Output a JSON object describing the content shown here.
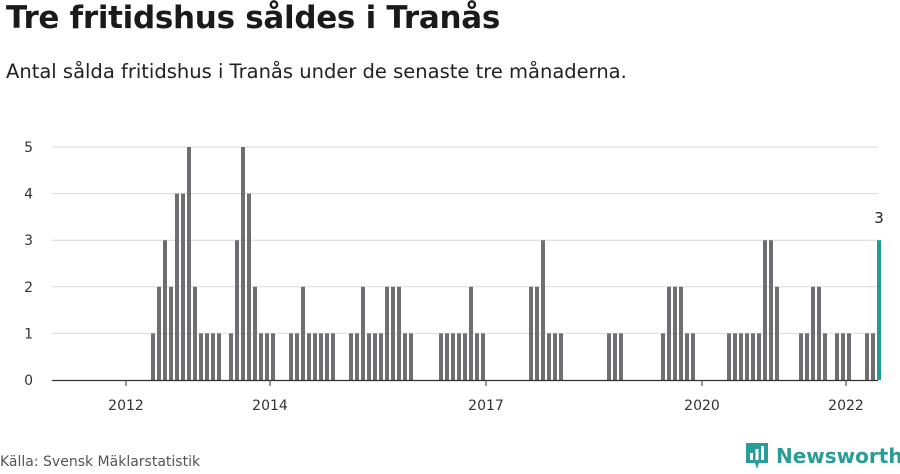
{
  "page": {
    "title": "Tre fritidshus såldes i Tranås",
    "subtitle": "Antal sålda fritidshus i Tranås under de senaste tre månaderna.",
    "source": "Källa: Svensk Mäklarstatistik",
    "brand": "Newsworthy"
  },
  "colors": {
    "bar": "#6e6e73",
    "highlight": "#1a9e96",
    "grid": "#d9d9d9",
    "axis": "#333333",
    "brand": "#2a9d96"
  },
  "chart_data": {
    "type": "bar",
    "title": "Tre fritidshus såldes i Tranås",
    "subtitle": "Antal sålda fritidshus i Tranås under de senaste tre månaderna.",
    "ylim": [
      0,
      5
    ],
    "yticks": [
      0,
      1,
      2,
      3,
      4,
      5
    ],
    "xticks": [
      "2012",
      "2014",
      "2017",
      "2020",
      "2022"
    ],
    "grid": true,
    "bar_count": 130,
    "xtick_positions": [
      4,
      28,
      64,
      100,
      124
    ],
    "values": [
      0,
      0,
      0,
      0,
      0,
      0,
      0,
      0,
      1,
      2,
      3,
      2,
      4,
      4,
      5,
      2,
      1,
      1,
      1,
      1,
      0,
      1,
      3,
      5,
      4,
      2,
      1,
      1,
      1,
      0,
      0,
      1,
      1,
      2,
      1,
      1,
      1,
      1,
      1,
      0,
      0,
      1,
      1,
      2,
      1,
      1,
      1,
      2,
      2,
      2,
      1,
      1,
      0,
      0,
      0,
      0,
      1,
      1,
      1,
      1,
      1,
      2,
      1,
      1,
      0,
      0,
      0,
      0,
      0,
      0,
      0,
      2,
      2,
      3,
      1,
      1,
      1,
      0,
      0,
      0,
      0,
      0,
      0,
      0,
      1,
      1,
      1,
      0,
      0,
      0,
      0,
      0,
      0,
      1,
      2,
      2,
      2,
      1,
      1,
      0,
      0,
      0,
      0,
      0,
      1,
      1,
      1,
      1,
      1,
      1,
      3,
      3,
      2,
      0,
      0,
      0,
      1,
      1,
      2,
      2,
      1,
      0,
      1,
      1,
      1,
      0,
      0,
      1,
      1,
      3
    ],
    "highlight_index": 129,
    "highlight_label": "3"
  }
}
